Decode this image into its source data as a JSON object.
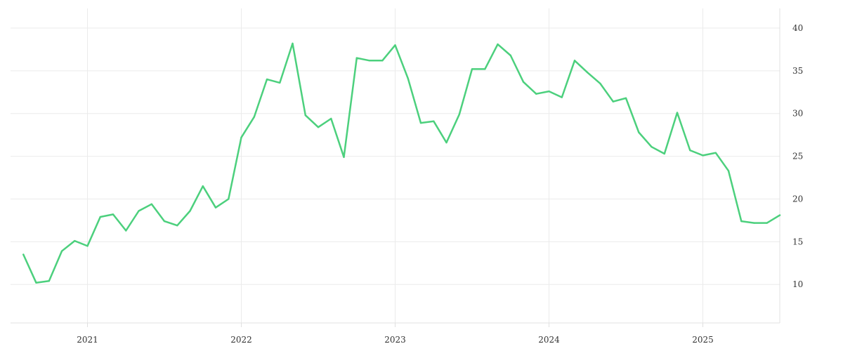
{
  "chart_data": {
    "type": "line",
    "title": "",
    "xlabel": "",
    "ylabel": "",
    "grid": true,
    "legend": "none",
    "series_color": "#4cd07d",
    "x_ticks": [
      "2021",
      "2022",
      "2023",
      "2024",
      "2025"
    ],
    "y_ticks": [
      10,
      15,
      20,
      25,
      30,
      35,
      40
    ],
    "xlim": [
      "2020-07",
      "2025-07"
    ],
    "ylim": [
      5.5,
      42.3
    ],
    "series": [
      {
        "x": [
          "2020-08",
          "2020-09",
          "2020-10",
          "2020-11",
          "2020-12",
          "2021-01",
          "2021-02",
          "2021-03",
          "2021-04",
          "2021-05",
          "2021-06",
          "2021-07",
          "2021-08",
          "2021-09",
          "2021-10",
          "2021-11",
          "2021-12",
          "2022-01",
          "2022-02",
          "2022-03",
          "2022-04",
          "2022-05",
          "2022-06",
          "2022-07",
          "2022-08",
          "2022-09",
          "2022-10",
          "2022-11",
          "2022-12",
          "2023-01",
          "2023-02",
          "2023-03",
          "2023-04",
          "2023-05",
          "2023-06",
          "2023-07",
          "2023-08",
          "2023-09",
          "2023-10",
          "2023-11",
          "2023-12",
          "2024-01",
          "2024-02",
          "2024-03",
          "2024-04",
          "2024-05",
          "2024-06",
          "2024-07",
          "2024-08",
          "2024-09",
          "2024-10",
          "2024-11",
          "2024-12",
          "2025-01",
          "2025-02",
          "2025-03",
          "2025-04",
          "2025-05",
          "2025-06",
          "2025-07"
        ],
        "values": [
          13.5,
          10.2,
          10.4,
          13.9,
          15.1,
          14.5,
          17.9,
          18.2,
          16.3,
          18.6,
          19.4,
          17.4,
          16.9,
          18.6,
          21.5,
          19.0,
          20.0,
          27.2,
          29.6,
          34.0,
          33.6,
          38.2,
          29.8,
          28.4,
          29.4,
          24.9,
          36.5,
          36.2,
          36.2,
          38.0,
          34.1,
          28.9,
          29.1,
          26.6,
          29.9,
          35.2,
          35.2,
          38.1,
          36.8,
          33.7,
          32.3,
          32.6,
          31.9,
          36.2,
          34.8,
          33.5,
          31.4,
          31.8,
          27.8,
          26.1,
          25.3,
          30.1,
          25.7,
          25.1,
          25.4,
          23.3,
          17.4,
          17.2,
          17.2,
          18.1
        ]
      }
    ]
  }
}
